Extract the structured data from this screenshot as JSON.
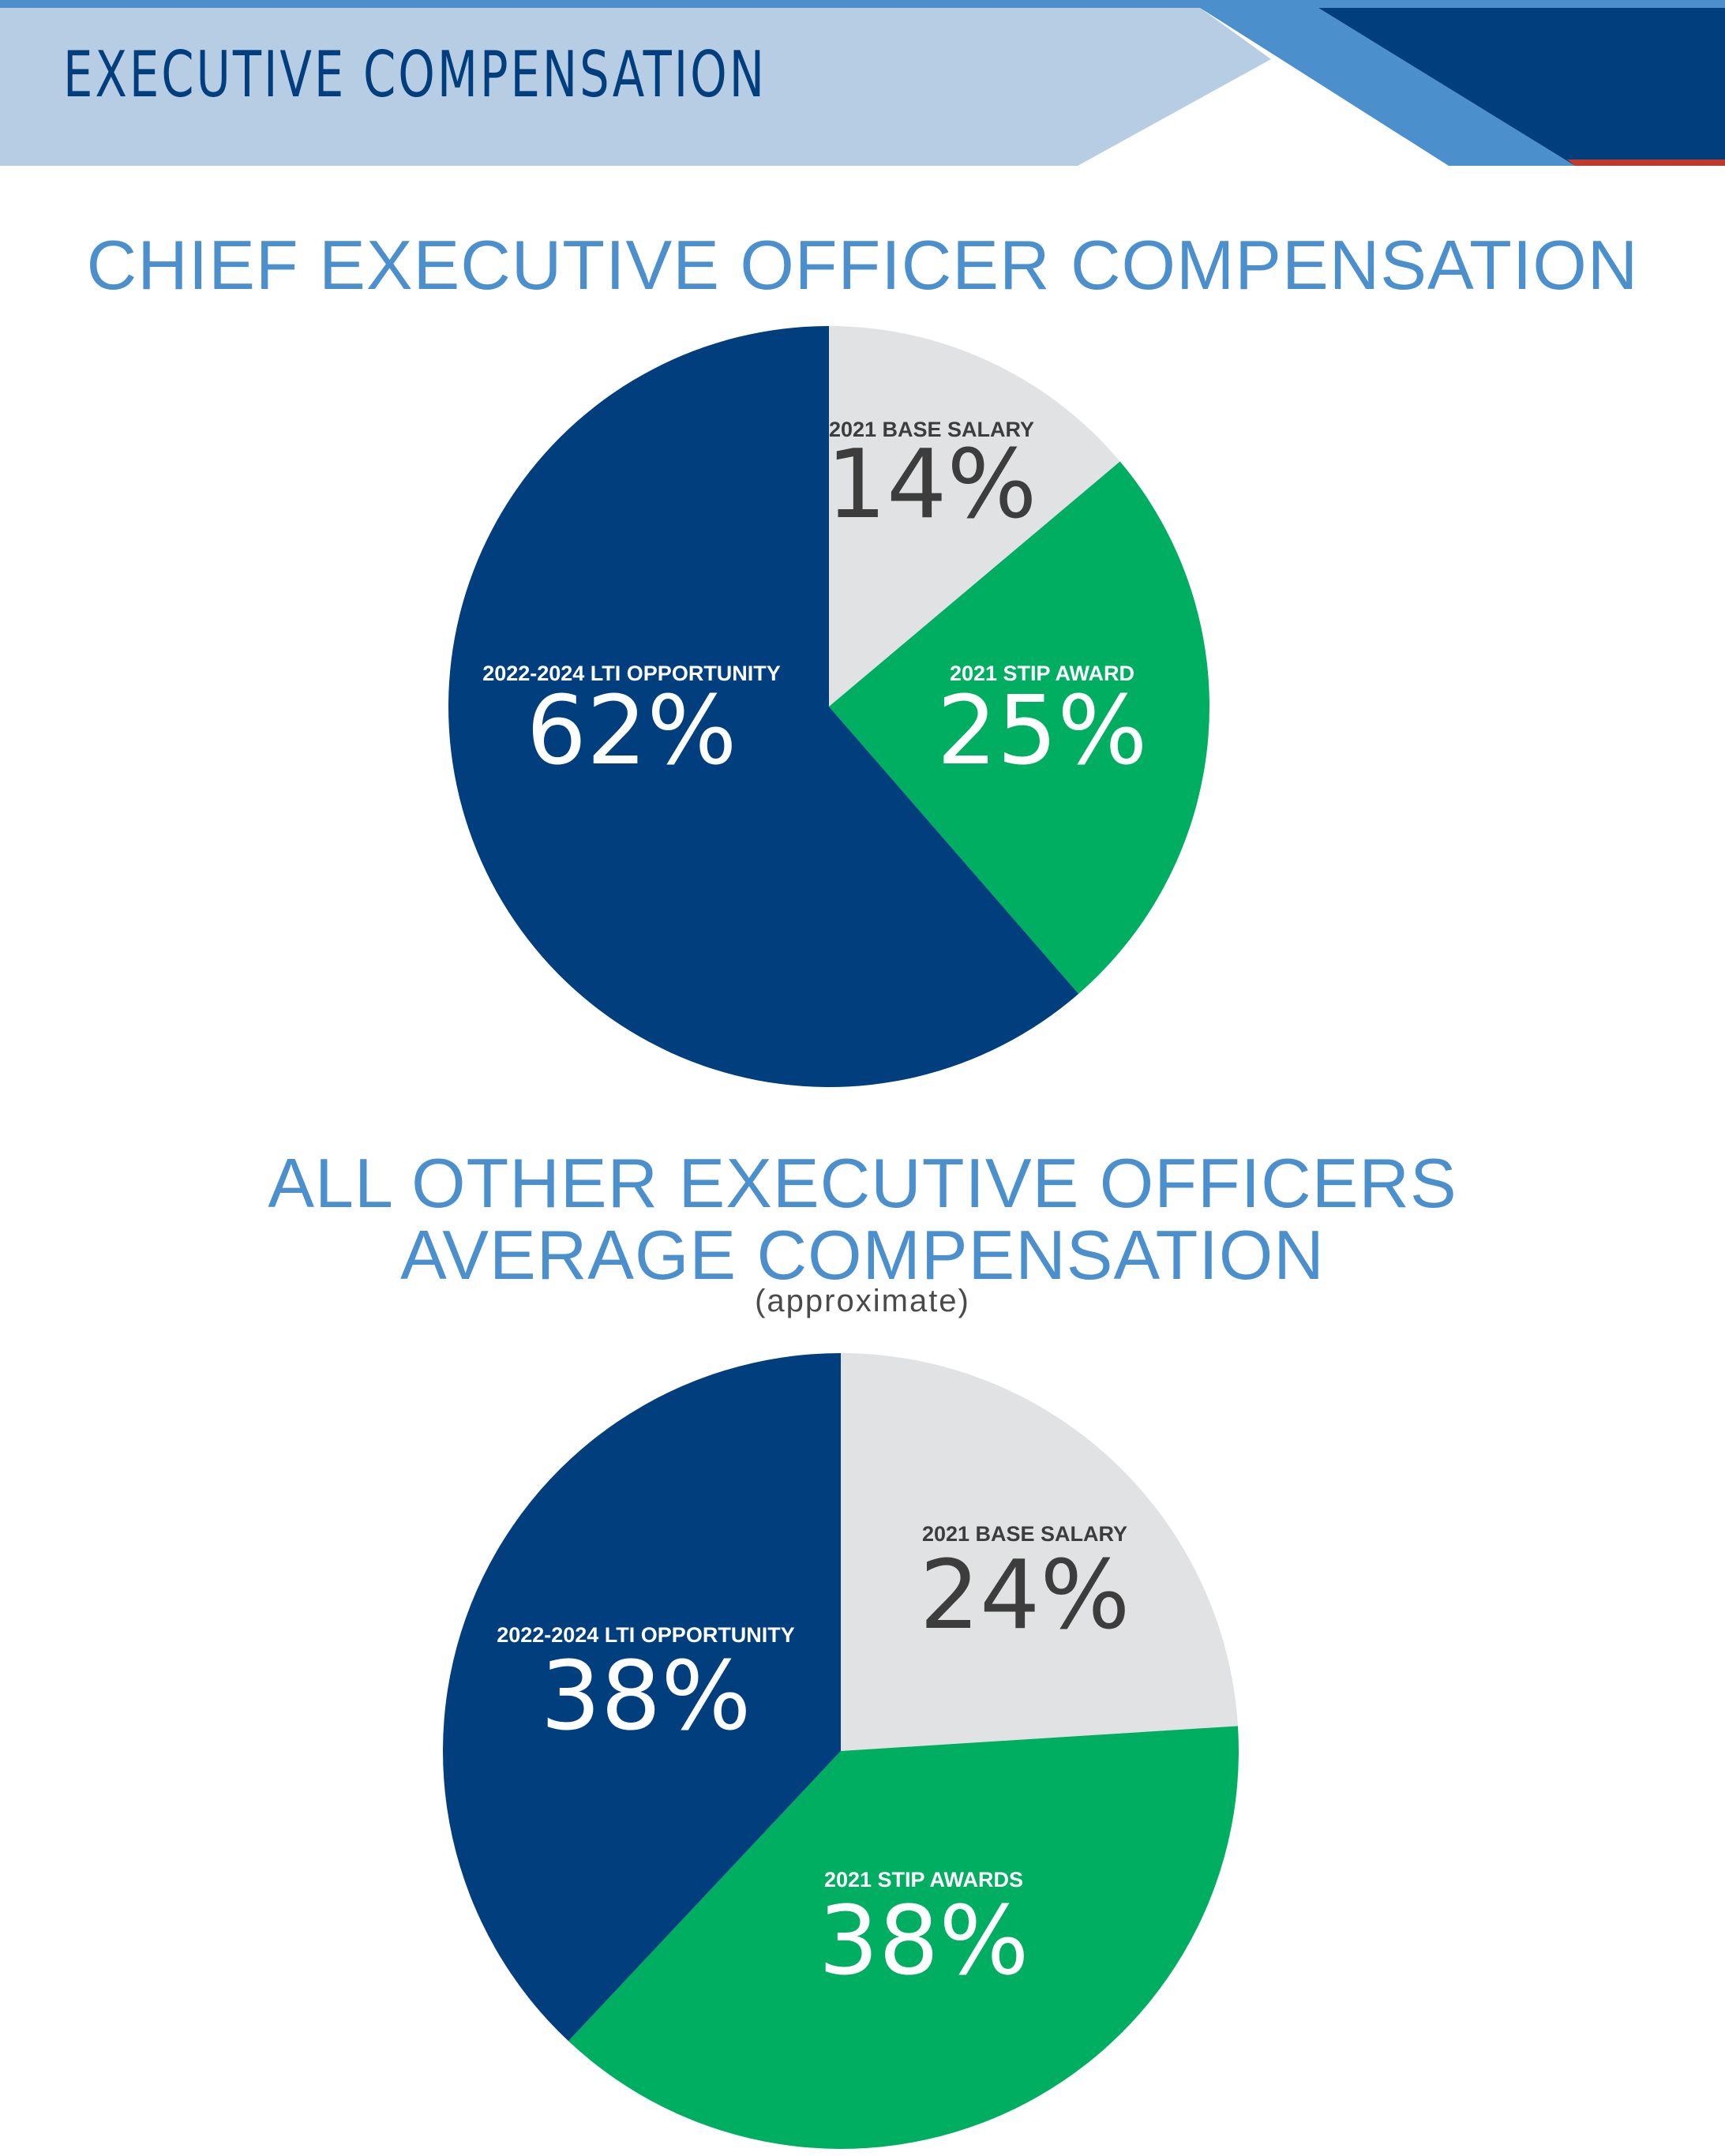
{
  "header": {
    "section_label": "EXECUTIVE COMPENSATION",
    "colors": {
      "light": "#b7cde3",
      "mid": "#4b8fcd",
      "dark": "#003e7e",
      "red": "#c0392b"
    }
  },
  "chart_data": [
    {
      "type": "pie",
      "title": "CHIEF EXECUTIVE OFFICER COMPENSATION",
      "slices": [
        {
          "label": "2021 BASE SALARY",
          "value": 14,
          "display": "14%",
          "color": "#e1e2e4",
          "text_color": "#3d3d3d"
        },
        {
          "label": "2021 STIP AWARD",
          "value": 25,
          "display": "25%",
          "color": "#00ae61",
          "text_color": "#ffffff"
        },
        {
          "label": "2022-2024 LTI OPPORTUNITY",
          "value": 62,
          "display": "62%",
          "color": "#003e7e",
          "text_color": "#ffffff"
        }
      ]
    },
    {
      "type": "pie",
      "title": "ALL OTHER EXECUTIVE OFFICERS",
      "title_line2": "AVERAGE COMPENSATION",
      "subtitle": "(approximate)",
      "slices": [
        {
          "label": "2021 BASE SALARY",
          "value": 24,
          "display": "24%",
          "color": "#e1e2e4",
          "text_color": "#3d3d3d"
        },
        {
          "label": "2021 STIP AWARDS",
          "value": 38,
          "display": "38%",
          "color": "#00ae61",
          "text_color": "#ffffff"
        },
        {
          "label": "2022-2024 LTI OPPORTUNITY",
          "value": 38,
          "display": "38%",
          "color": "#003e7e",
          "text_color": "#ffffff"
        }
      ]
    }
  ]
}
